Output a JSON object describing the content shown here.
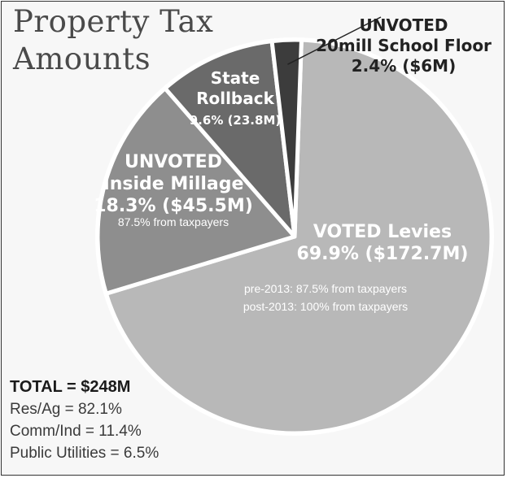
{
  "title_lines": [
    "Property Tax",
    "Amounts"
  ],
  "chart_data": {
    "type": "pie",
    "slices": [
      {
        "name_lines": [
          "VOTED Levies"
        ],
        "value_label": "69.9% ($172.7M)",
        "percent": 69.9,
        "amount_musd": 172.7,
        "notes": [
          "pre-2013: 87.5% from taxpayers",
          "post-2013: 100% from taxpayers"
        ],
        "color": "#b8b8b8"
      },
      {
        "name_lines": [
          "UNVOTED",
          "Inside Millage"
        ],
        "value_label": "18.3% ($45.5M)",
        "percent": 18.3,
        "amount_musd": 45.5,
        "notes": [
          "87.5% from taxpayers"
        ],
        "color": "#8e8e8e"
      },
      {
        "name_lines": [
          "State",
          "Rollback"
        ],
        "value_label": "9.6% (23.8M)",
        "percent": 9.6,
        "amount_musd": 23.8,
        "notes": [],
        "color": "#6a6a6a"
      },
      {
        "name_lines": [
          "UNVOTED",
          "20mill School Floor"
        ],
        "value_label": "2.4% ($6M)",
        "percent": 2.4,
        "amount_musd": 6,
        "notes": [],
        "color": "#3c3c3c"
      }
    ]
  },
  "totals": {
    "total": "TOTAL = $248M",
    "lines": [
      "Res/Ag = 82.1%",
      "Comm/Ind = 11.4%",
      "Public Utilities = 6.5%"
    ]
  }
}
